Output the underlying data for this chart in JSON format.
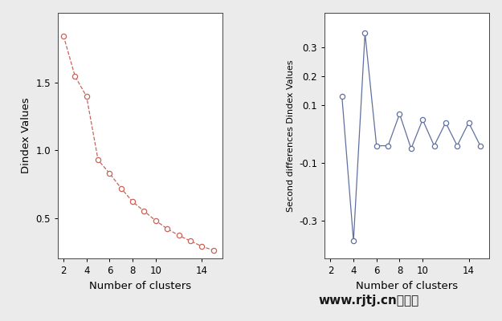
{
  "left_x": [
    2,
    3,
    4,
    5,
    6,
    7,
    8,
    9,
    10,
    11,
    12,
    13,
    14,
    15
  ],
  "left_y": [
    1.85,
    1.55,
    1.4,
    0.93,
    0.83,
    0.72,
    0.62,
    0.55,
    0.48,
    0.42,
    0.37,
    0.33,
    0.29,
    0.26
  ],
  "left_color": "#c8645a",
  "left_ylabel": "Dindex Values",
  "left_xlabel": "Number of clusters",
  "left_yticks": [
    0.5,
    1.0,
    1.5
  ],
  "left_xticks": [
    2,
    4,
    6,
    8,
    10,
    14
  ],
  "left_ylim": [
    0.2,
    2.02
  ],
  "left_xlim": [
    1.5,
    15.8
  ],
  "right_x": [
    3,
    4,
    5,
    6,
    7,
    8,
    9,
    10,
    11,
    12,
    13,
    14,
    15
  ],
  "right_y": [
    0.13,
    -0.37,
    0.35,
    -0.04,
    -0.04,
    0.07,
    -0.05,
    0.05,
    -0.04,
    0.04,
    -0.04,
    0.04,
    -0.04
  ],
  "right_color": "#6070a0",
  "right_ylabel": "Second differences Dindex Values",
  "right_xlabel": "Number of clusters",
  "right_yticks": [
    -0.3,
    -0.1,
    0.1,
    0.2,
    0.3
  ],
  "right_xticks": [
    2,
    4,
    6,
    8,
    10,
    14
  ],
  "right_ylim": [
    -0.43,
    0.42
  ],
  "right_xlim": [
    1.5,
    15.8
  ],
  "bg_color": "#ebebeb",
  "watermark": "www.rjtj.cn软推网",
  "watermark_fontsize": 11
}
